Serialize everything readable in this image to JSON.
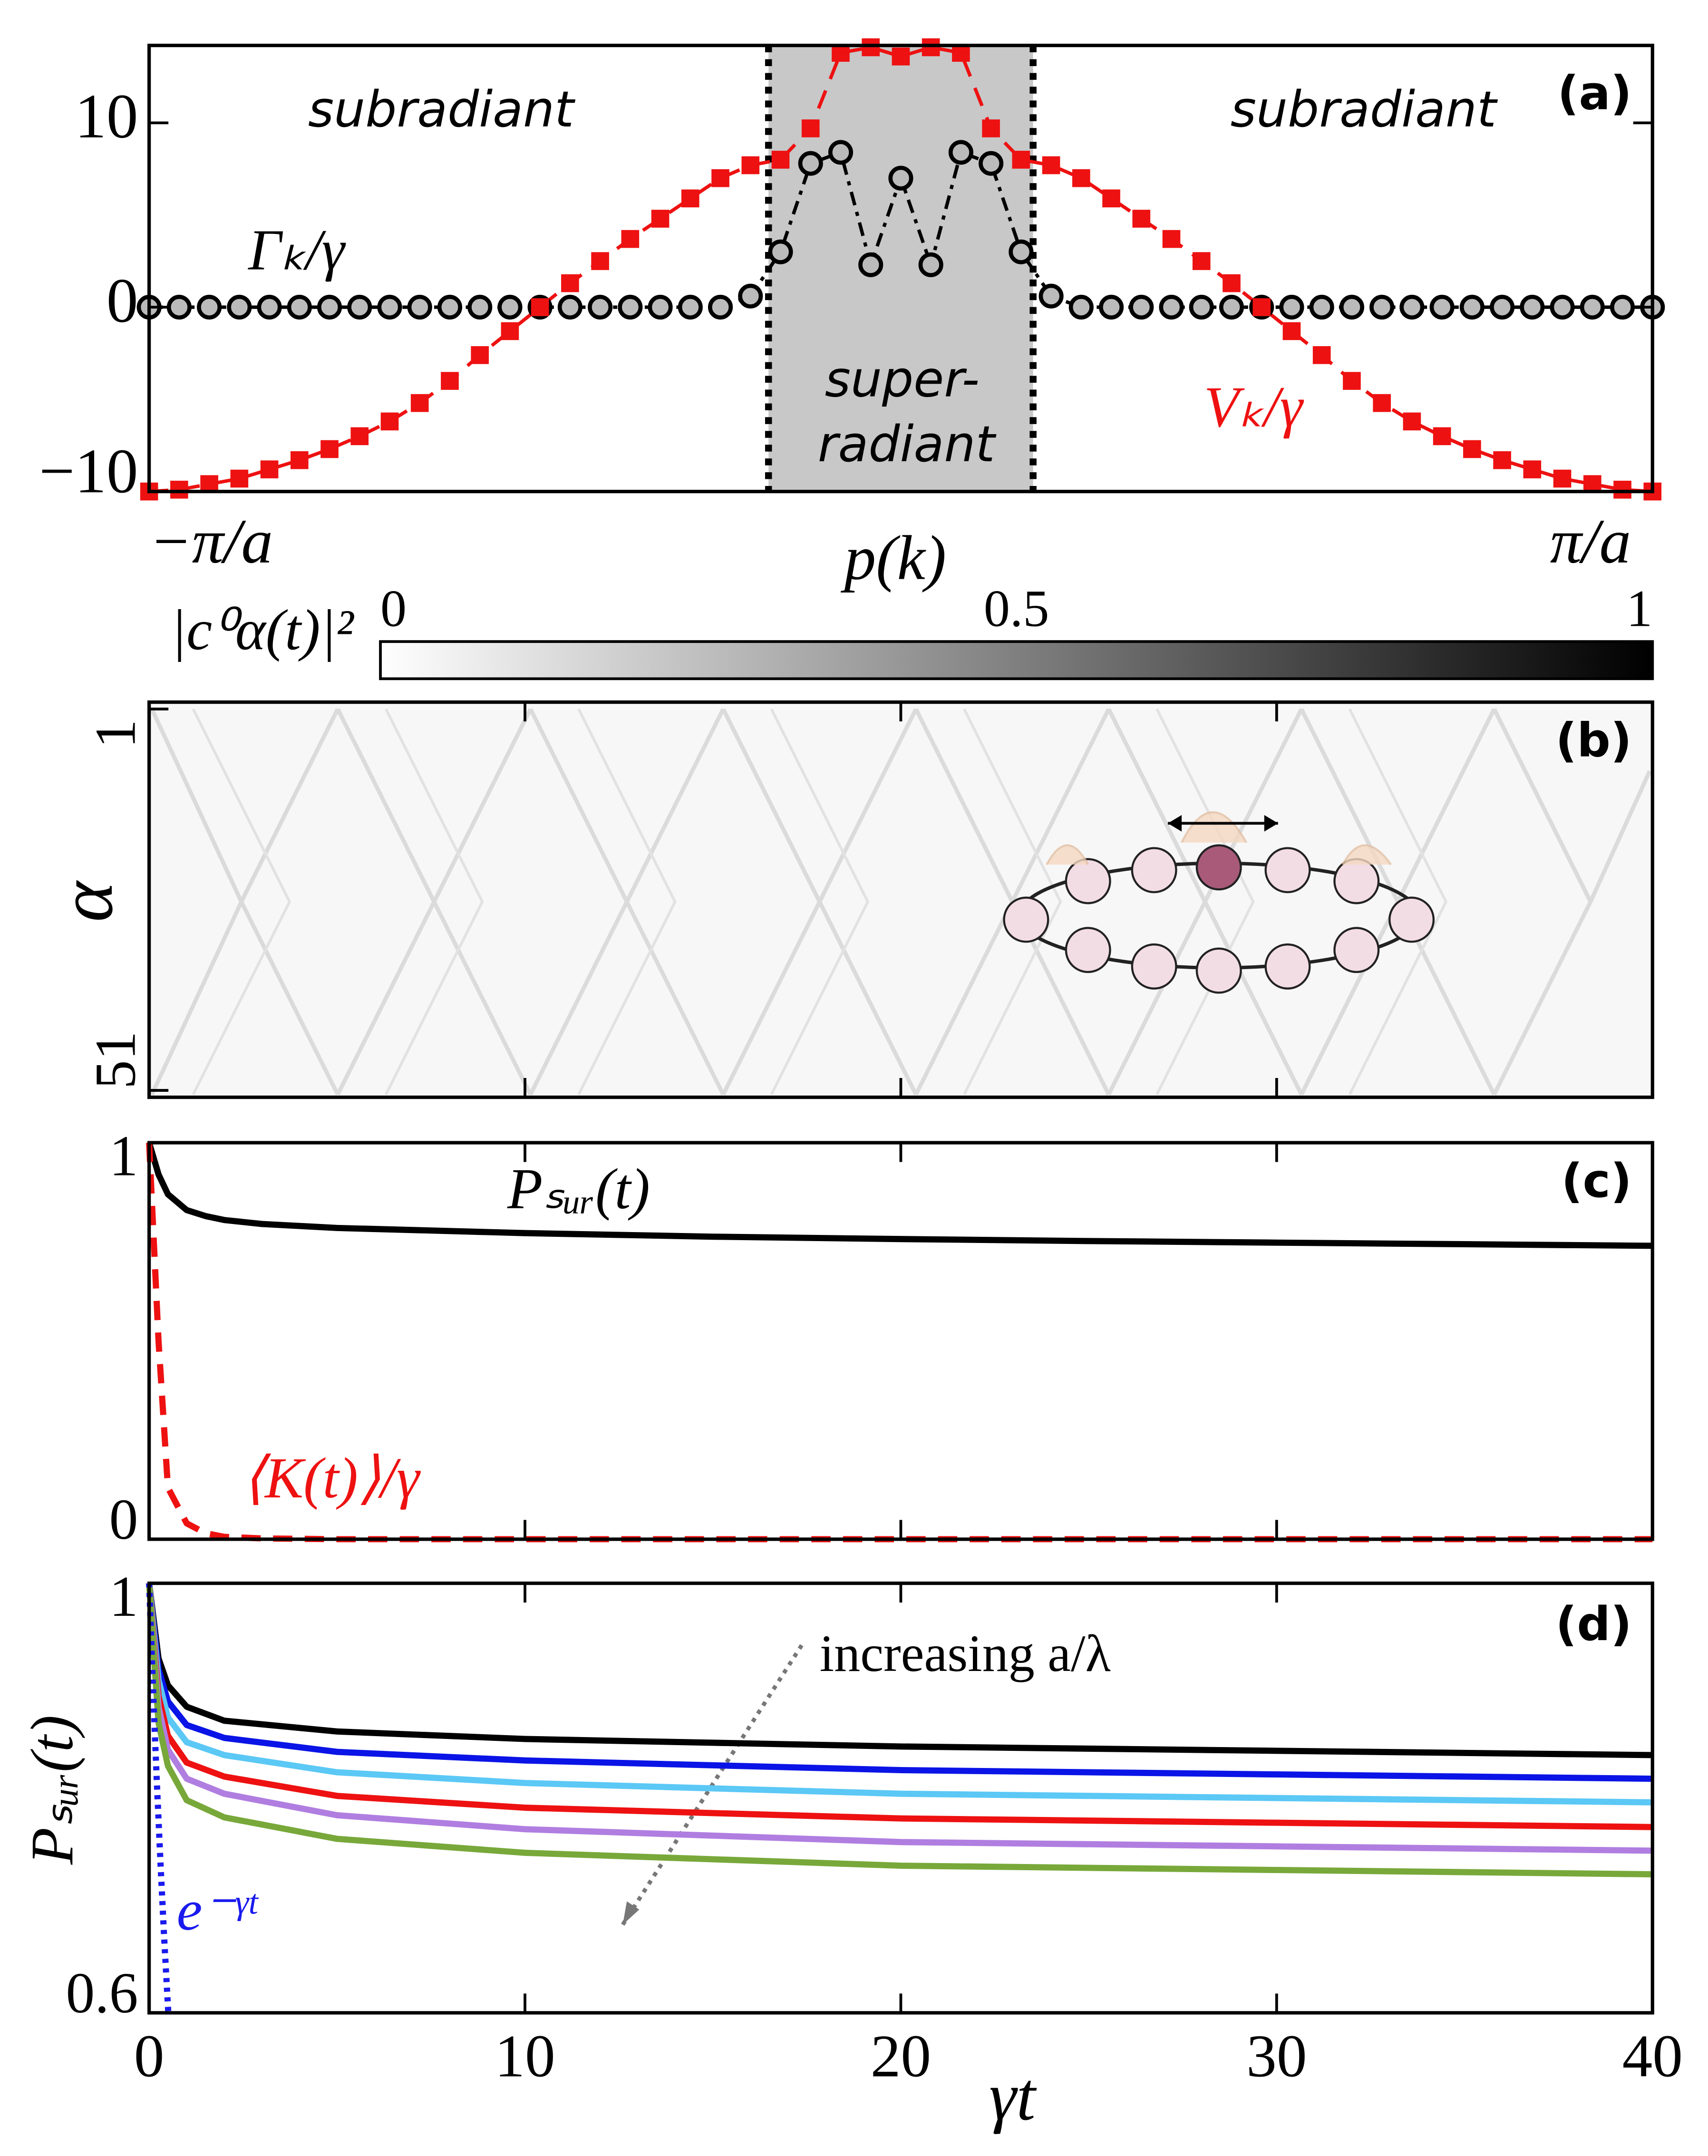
{
  "chart_data": [
    {
      "type": "line",
      "label": "(a)",
      "x": [
        -1,
        -0.96,
        -0.92,
        -0.88,
        -0.84,
        -0.8,
        -0.76,
        -0.72,
        -0.68,
        -0.64,
        -0.6,
        -0.56,
        -0.52,
        -0.48,
        -0.44,
        -0.4,
        -0.36,
        -0.32,
        -0.28,
        -0.24,
        -0.2,
        -0.16,
        -0.12,
        -0.08,
        -0.04,
        0,
        0.04,
        0.08,
        0.12,
        0.16,
        0.2,
        0.24,
        0.28,
        0.32,
        0.36,
        0.4,
        0.44,
        0.48,
        0.52,
        0.56,
        0.6,
        0.64,
        0.68,
        0.72,
        0.76,
        0.8,
        0.84,
        0.88,
        0.92,
        0.96,
        1
      ],
      "xlim": [
        -1,
        1
      ],
      "xticks": [
        {
          "value": -1,
          "label": "−π/a"
        },
        {
          "value": 1,
          "label": "π/a"
        }
      ],
      "xlabel": "p(k)",
      "ylim": [
        -10,
        14.2
      ],
      "yticks": [
        {
          "value": -10,
          "label": "−10"
        },
        0,
        10
      ],
      "shaded_region": [
        -0.176,
        0.176
      ],
      "annotations": [
        "subradiant",
        "subradiant",
        "super-",
        "radiant"
      ],
      "series": [
        {
          "name": "Γₖ/γ",
          "color": "#000000",
          "marker": "circle",
          "style": "dashdot",
          "values": [
            0,
            0,
            0,
            0,
            0,
            0,
            0,
            0,
            0,
            0,
            0,
            0,
            0,
            0,
            0,
            0,
            0,
            0,
            0,
            0,
            0.6,
            3.0,
            7.8,
            8.4,
            2.3,
            7.0,
            2.3,
            8.4,
            7.8,
            3.0,
            0.6,
            0,
            0,
            0,
            0,
            0,
            0,
            0,
            0,
            0,
            0,
            0,
            0,
            0,
            0,
            0,
            0,
            0,
            0,
            0,
            0
          ]
        },
        {
          "name": "Vₖ/γ",
          "color": "#ee1111",
          "marker": "square",
          "style": "dashed",
          "values": [
            -10,
            -9.9,
            -9.6,
            -9.3,
            -8.8,
            -8.3,
            -7.7,
            -7.0,
            -6.2,
            -5.2,
            -4.0,
            -2.6,
            -1.3,
            0,
            1.3,
            2.5,
            3.7,
            4.8,
            5.9,
            7.0,
            7.7,
            8.0,
            9.7,
            13.8,
            14.1,
            13.6,
            14.1,
            13.8,
            9.7,
            8.0,
            7.7,
            7.0,
            5.9,
            4.8,
            3.7,
            2.5,
            1.3,
            0,
            -1.3,
            -2.6,
            -4.0,
            -5.2,
            -6.2,
            -7.0,
            -7.7,
            -8.3,
            -8.8,
            -9.3,
            -9.6,
            -9.9,
            -10
          ]
        }
      ]
    },
    {
      "type": "heatmap",
      "label": "(b)",
      "colorbar_label": "|c⁰α(t)|²",
      "colorbar_lim": [
        0,
        1
      ],
      "colorbar_ticks": [
        0,
        0.5,
        1
      ],
      "ylabel": "α",
      "ylim": [
        1,
        51
      ],
      "yticks": [
        1,
        51
      ],
      "xlim": [
        0,
        40
      ]
    },
    {
      "type": "line",
      "label": "(c)",
      "x": [
        0,
        0.25,
        0.5,
        1,
        1.5,
        2,
        3,
        5,
        10,
        15,
        20,
        25,
        30,
        35,
        40
      ],
      "xlim": [
        0,
        40
      ],
      "ylim": [
        0,
        1
      ],
      "yticks": [
        0,
        1
      ],
      "series": [
        {
          "name": "Pₛᵤᵣ(t)",
          "color": "#000000",
          "style": "solid",
          "values": [
            1,
            0.92,
            0.87,
            0.83,
            0.815,
            0.805,
            0.795,
            0.785,
            0.772,
            0.763,
            0.757,
            0.752,
            0.748,
            0.744,
            0.74
          ]
        },
        {
          "name": "⟨K(t)⟩/γ",
          "color": "#ee1111",
          "style": "dashed",
          "values": [
            1,
            0.5,
            0.13,
            0.04,
            0.015,
            0.006,
            0.002,
            0,
            0,
            0,
            0,
            0,
            0,
            0,
            0
          ]
        }
      ]
    },
    {
      "type": "line",
      "label": "(d)",
      "x": [
        0,
        0.25,
        0.5,
        1,
        2,
        5,
        10,
        20,
        30,
        40
      ],
      "xlim": [
        0,
        40
      ],
      "xticks": [
        0,
        10,
        20,
        30,
        40
      ],
      "xlabel": "γt",
      "ylabel": "Pₛᵤᵣ(t)",
      "ylim": [
        0.6,
        1
      ],
      "yticks": [
        0.6,
        1
      ],
      "annotations": [
        "increasing a/λ"
      ],
      "series": [
        {
          "color": "#000000",
          "style": "solid",
          "values": [
            1,
            0.93,
            0.905,
            0.885,
            0.872,
            0.862,
            0.855,
            0.848,
            0.844,
            0.84
          ]
        },
        {
          "color": "#0a14e6",
          "style": "solid",
          "values": [
            1,
            0.92,
            0.89,
            0.868,
            0.856,
            0.843,
            0.835,
            0.826,
            0.822,
            0.818
          ]
        },
        {
          "color": "#5bc8f5",
          "style": "solid",
          "values": [
            1,
            0.91,
            0.875,
            0.852,
            0.84,
            0.824,
            0.814,
            0.804,
            0.8,
            0.796
          ]
        },
        {
          "color": "#ee1111",
          "style": "solid",
          "values": [
            1,
            0.895,
            0.858,
            0.833,
            0.82,
            0.802,
            0.791,
            0.781,
            0.777,
            0.773
          ]
        },
        {
          "color": "#b07ee0",
          "style": "solid",
          "values": [
            1,
            0.885,
            0.845,
            0.818,
            0.804,
            0.784,
            0.771,
            0.759,
            0.755,
            0.751
          ]
        },
        {
          "color": "#78a83a",
          "style": "solid",
          "values": [
            1,
            0.87,
            0.83,
            0.798,
            0.782,
            0.762,
            0.749,
            0.737,
            0.733,
            0.729
          ]
        },
        {
          "name": "e⁻ᵞᵗ",
          "color": "#1a1aee",
          "style": "dotted",
          "x": [
            0,
            0.1,
            0.2,
            0.3,
            0.4,
            0.51
          ],
          "values": [
            1,
            0.905,
            0.819,
            0.741,
            0.67,
            0.6
          ]
        }
      ]
    }
  ]
}
